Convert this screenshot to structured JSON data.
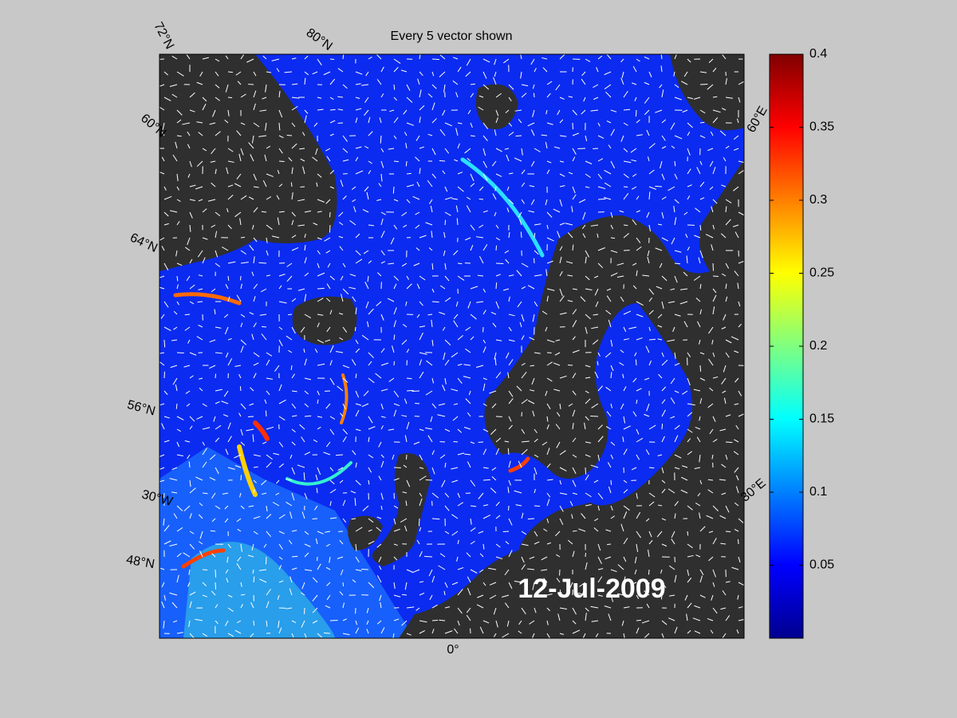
{
  "map": {
    "title": "Every 5 vector shown",
    "date_label": "12-Jul-2009",
    "graticule_labels": [
      "72°N",
      "80°N",
      "60°N",
      "64°N",
      "56°N",
      "30°W",
      "48°N",
      "0°",
      "60°E",
      "30°E"
    ],
    "colorbar": {
      "lim": [
        0,
        0.4
      ],
      "ticks": [
        0.05,
        0.1,
        0.15,
        0.2,
        0.25,
        0.3,
        0.35,
        0.4
      ]
    }
  }
}
